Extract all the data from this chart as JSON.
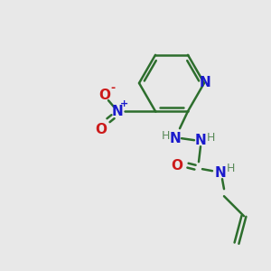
{
  "background_color": "#e8e8e8",
  "bond_color": "#2d6e2d",
  "N_color": "#1a1acc",
  "O_color": "#cc1a1a",
  "H_color": "#5a8a5a",
  "figsize": [
    3.0,
    3.0
  ],
  "dpi": 100,
  "xlim": [
    0,
    300
  ],
  "ylim": [
    0,
    300
  ]
}
